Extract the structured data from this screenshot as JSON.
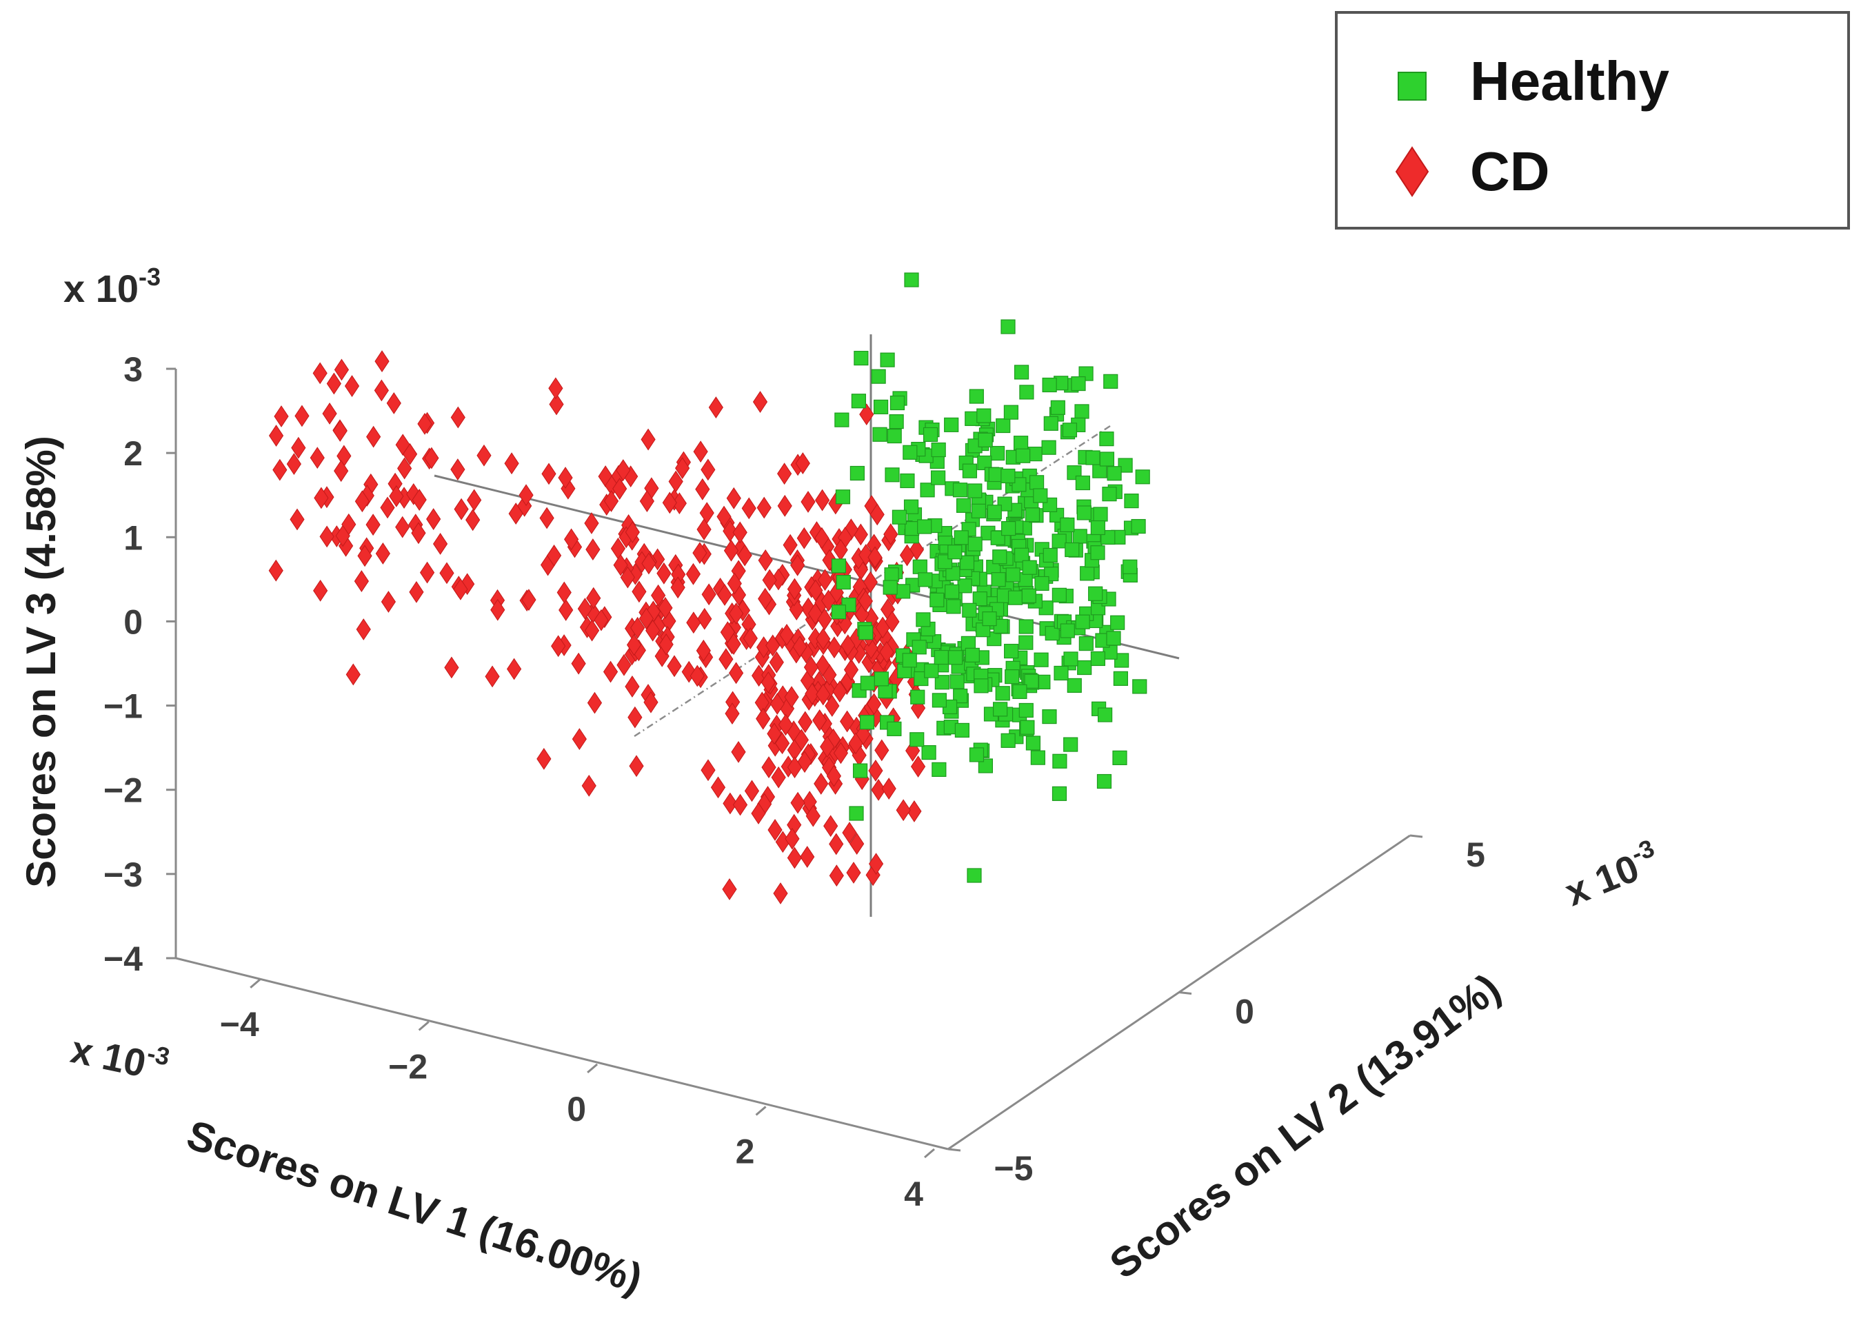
{
  "chart_data": {
    "type": "scatter",
    "projection": "3d",
    "title": "",
    "xlabel": "Scores on LV 1 (16.00%)",
    "ylabel": "Scores on LV 2 (13.91%)",
    "zlabel": "Scores on LV 3 (4.58%)",
    "x_multiplier": "x 10",
    "y_multiplier": "x 10",
    "z_multiplier": "x 10",
    "multiplier_exponent": "-3",
    "xlim": [
      -5,
      4
    ],
    "ylim": [
      -5,
      5
    ],
    "zlim": [
      -4,
      3
    ],
    "x_ticks": [
      -4,
      -2,
      0,
      2,
      4
    ],
    "x_tick_labels": [
      "−4",
      "−2",
      "0",
      "2",
      "4"
    ],
    "y_ticks": [
      -5,
      0,
      5
    ],
    "y_tick_labels": [
      "−5",
      "0",
      "5"
    ],
    "z_ticks": [
      -4,
      -3,
      -2,
      -1,
      0,
      1,
      2,
      3
    ],
    "z_tick_labels": [
      "−4",
      "−3",
      "−2",
      "−1",
      "0",
      "1",
      "2",
      "3"
    ],
    "legend_position": "top-right",
    "series": [
      {
        "name": "Healthy",
        "marker": "square",
        "color": "#2ed12e",
        "approx_count": 420
      },
      {
        "name": "CD",
        "marker": "diamond",
        "color": "#ee2b2b",
        "approx_count": 470
      }
    ]
  },
  "legend": {
    "items": [
      {
        "label": "Healthy",
        "icon": "green-square-icon"
      },
      {
        "label": "CD",
        "icon": "red-diamond-icon"
      }
    ]
  }
}
